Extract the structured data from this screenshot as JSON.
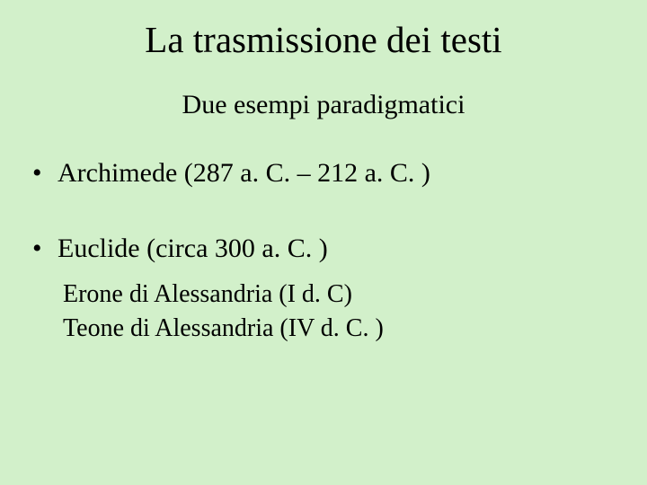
{
  "background_color": "#d2f0ca",
  "text_color": "#000000",
  "font_family": "Times New Roman",
  "title": {
    "text": "La trasmissione dei testi",
    "fontsize": 41
  },
  "subtitle": {
    "text": "Due esempi paradigmatici",
    "fontsize": 30
  },
  "bullets": [
    {
      "text": "Archimede (287 a. C. – 212 a. C. )"
    },
    {
      "text": "Euclide (circa 300 a. C. )"
    }
  ],
  "sublines": [
    "Erone di Alessandria (I d. C)",
    "Teone di Alessandria (IV d. C. )"
  ],
  "bullet_fontsize": 30,
  "subline_fontsize": 28
}
